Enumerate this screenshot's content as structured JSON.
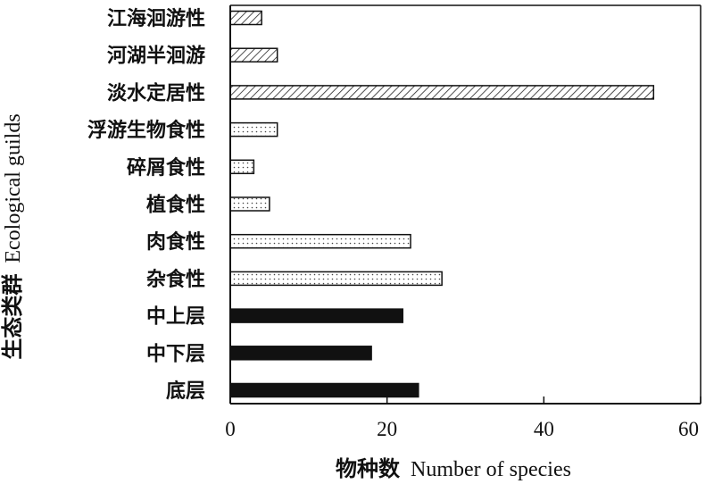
{
  "chart_data": {
    "type": "bar",
    "orientation": "horizontal",
    "categories": [
      "江海洄游性",
      "河湖半洄游",
      "淡水定居性",
      "浮游生物食性",
      "碎屑食性",
      "植食性",
      "肉食性",
      "杂食性",
      "中上层",
      "中下层",
      "底层"
    ],
    "values": [
      4,
      6,
      54,
      6,
      3,
      5,
      23,
      27,
      22,
      18,
      24
    ],
    "fills": [
      "hatch",
      "hatch",
      "hatch",
      "dots",
      "dots",
      "dots",
      "dots",
      "dots",
      "solid",
      "solid",
      "solid"
    ],
    "xlabel_cn": "物种数",
    "xlabel_en": "Number of species",
    "ylabel_cn": "生态类群",
    "ylabel_en": "Ecological guilds",
    "xlim": [
      0,
      60
    ],
    "xticks": [
      "0",
      "20",
      "40",
      "60"
    ],
    "grid": false,
    "colors": {
      "solid": "#111111",
      "outline": "#111111",
      "background": "#ffffff"
    }
  }
}
